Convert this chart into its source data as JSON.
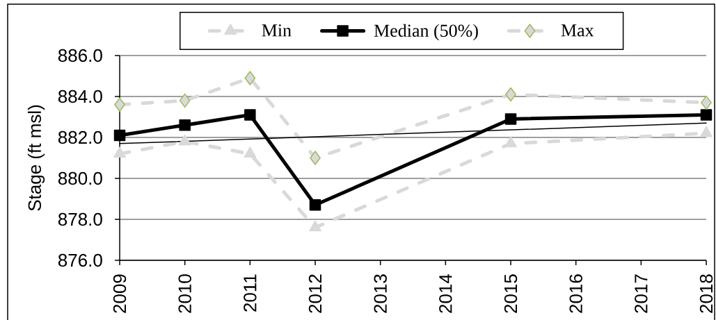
{
  "chart_data": {
    "type": "line",
    "ylabel": "Stage (ft msl)",
    "x": [
      2009,
      2010,
      2011,
      2012,
      2015,
      2018
    ],
    "xlim": [
      2009,
      2018
    ],
    "xticks": [
      2009,
      2010,
      2011,
      2012,
      2013,
      2014,
      2015,
      2016,
      2017,
      2018
    ],
    "ylim": [
      876,
      886
    ],
    "yticks": [
      {
        "value": 876,
        "label": "876.0"
      },
      {
        "value": 878,
        "label": "878.0"
      },
      {
        "value": 880,
        "label": "880.0"
      },
      {
        "value": 882,
        "label": "882.0"
      },
      {
        "value": 884,
        "label": "884.0"
      },
      {
        "value": 886,
        "label": "886.0"
      }
    ],
    "grid": "y",
    "legend": "top",
    "series": [
      {
        "name": "Min",
        "color": "#d9d9d9",
        "marker": "triangle",
        "line_style": "dashed",
        "values": [
          881.2,
          881.8,
          881.2,
          877.6,
          881.7,
          882.2
        ]
      },
      {
        "name": "Median (50%)",
        "color": "#000000",
        "marker": "square",
        "line_style": "solid",
        "values": [
          882.1,
          882.6,
          883.1,
          878.7,
          882.9,
          883.1
        ]
      },
      {
        "name": "Max",
        "color": "#d9d9d9",
        "marker": "diamond",
        "line_style": "dashed",
        "values": [
          883.6,
          883.8,
          884.9,
          881.0,
          884.1,
          883.7
        ]
      },
      {
        "type": "line",
        "color": "#000000",
        "marker": "none",
        "line_style": "solid",
        "x": [
          2009,
          2018
        ],
        "values": [
          881.7,
          882.7
        ]
      }
    ]
  }
}
